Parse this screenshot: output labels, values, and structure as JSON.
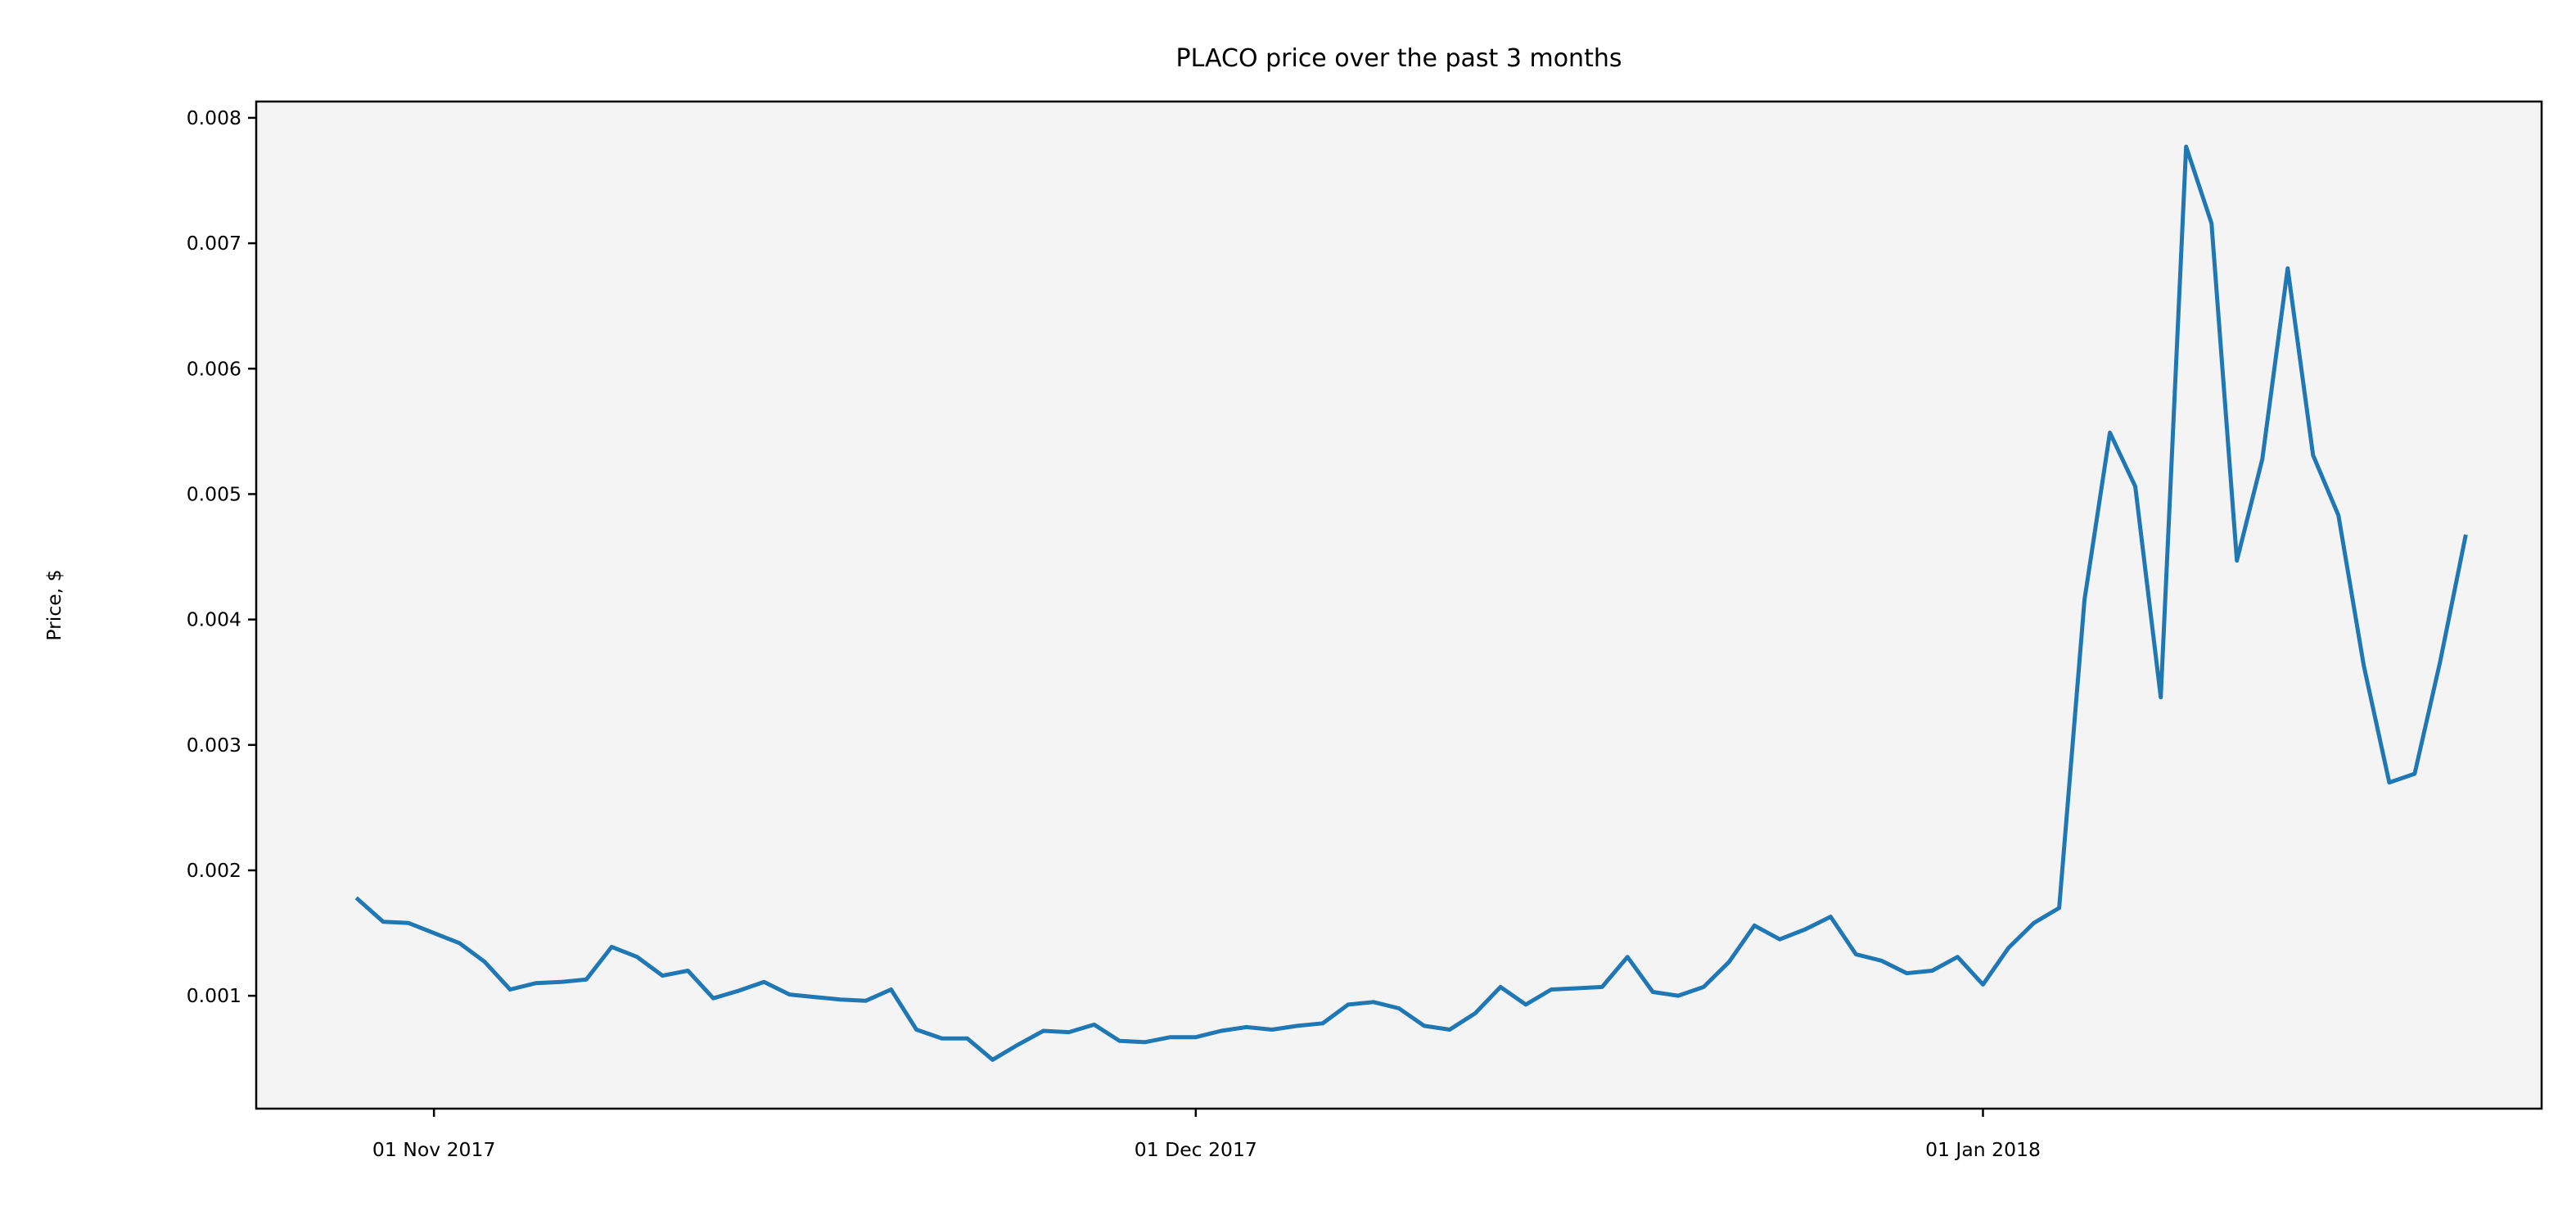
{
  "chart_data": {
    "type": "line",
    "title": "PLACO price over the past 3 months",
    "xlabel": "",
    "ylabel": "Price, $",
    "x_tick_labels": [
      {
        "date": "2017-11-01",
        "label": "01 Nov 2017"
      },
      {
        "date": "2017-12-01",
        "label": "01 Dec 2017"
      },
      {
        "date": "2018-01-01",
        "label": "01 Jan 2018"
      }
    ],
    "y_ticks": [
      "0.001",
      "0.002",
      "0.003",
      "0.004",
      "0.005",
      "0.006",
      "0.007",
      "0.008"
    ],
    "xlim": [
      "2017-10-25",
      "2018-01-23"
    ],
    "ylim": [
      0.0001,
      0.00813
    ],
    "grid": false,
    "colors": {
      "background": "#f4f4f4",
      "line": "#1f77b4",
      "axes": "#000000"
    },
    "series": [
      {
        "x": [
          "2017-10-29",
          "2017-10-30",
          "2017-10-31",
          "2017-11-01",
          "2017-11-02",
          "2017-11-03",
          "2017-11-04",
          "2017-11-05",
          "2017-11-06",
          "2017-11-07",
          "2017-11-08",
          "2017-11-09",
          "2017-11-10",
          "2017-11-11",
          "2017-11-12",
          "2017-11-13",
          "2017-11-14",
          "2017-11-15",
          "2017-11-16",
          "2017-11-17",
          "2017-11-18",
          "2017-11-19",
          "2017-11-20",
          "2017-11-21",
          "2017-11-22",
          "2017-11-23",
          "2017-11-24",
          "2017-11-25",
          "2017-11-26",
          "2017-11-27",
          "2017-11-28",
          "2017-11-29",
          "2017-11-30",
          "2017-12-01",
          "2017-12-02",
          "2017-12-03",
          "2017-12-04",
          "2017-12-05",
          "2017-12-06",
          "2017-12-07",
          "2017-12-08",
          "2017-12-09",
          "2017-12-10",
          "2017-12-11",
          "2017-12-12",
          "2017-12-13",
          "2017-12-14",
          "2017-12-15",
          "2017-12-16",
          "2017-12-17",
          "2017-12-18",
          "2017-12-19",
          "2017-12-20",
          "2017-12-21",
          "2017-12-22",
          "2017-12-23",
          "2017-12-24",
          "2017-12-25",
          "2017-12-26",
          "2017-12-27",
          "2017-12-28",
          "2017-12-29",
          "2017-12-30",
          "2017-12-31",
          "2018-01-01",
          "2018-01-02",
          "2018-01-03",
          "2018-01-04",
          "2018-01-05",
          "2018-01-06",
          "2018-01-07",
          "2018-01-08",
          "2018-01-09",
          "2018-01-10",
          "2018-01-11",
          "2018-01-12",
          "2018-01-13",
          "2018-01-14",
          "2018-01-15",
          "2018-01-16",
          "2018-01-17",
          "2018-01-18",
          "2018-01-19",
          "2018-01-20"
        ],
        "values": [
          0.00177,
          0.00159,
          0.00158,
          0.0015,
          0.00142,
          0.00127,
          0.00105,
          0.0011,
          0.00111,
          0.00113,
          0.00139,
          0.00131,
          0.00116,
          0.0012,
          0.00098,
          0.00104,
          0.00111,
          0.00101,
          0.00099,
          0.00097,
          0.00096,
          0.00105,
          0.00073,
          0.00066,
          0.00066,
          0.00049,
          0.00061,
          0.00072,
          0.00071,
          0.00077,
          0.00064,
          0.00063,
          0.00067,
          0.00067,
          0.00072,
          0.00075,
          0.00073,
          0.00076,
          0.00078,
          0.00093,
          0.00095,
          0.0009,
          0.00076,
          0.00073,
          0.00086,
          0.00107,
          0.00093,
          0.00105,
          0.00106,
          0.00107,
          0.00131,
          0.00103,
          0.001,
          0.00107,
          0.00127,
          0.00156,
          0.00145,
          0.00153,
          0.00163,
          0.00133,
          0.00128,
          0.00118,
          0.0012,
          0.00131,
          0.00109,
          0.00138,
          0.00158,
          0.0017,
          0.00416,
          0.00549,
          0.00506,
          0.00338,
          0.00777,
          0.00716,
          0.00447,
          0.00528,
          0.0068,
          0.00531,
          0.00483,
          0.00363,
          0.0027,
          0.00277,
          0.00366,
          0.00466
        ]
      }
    ]
  }
}
